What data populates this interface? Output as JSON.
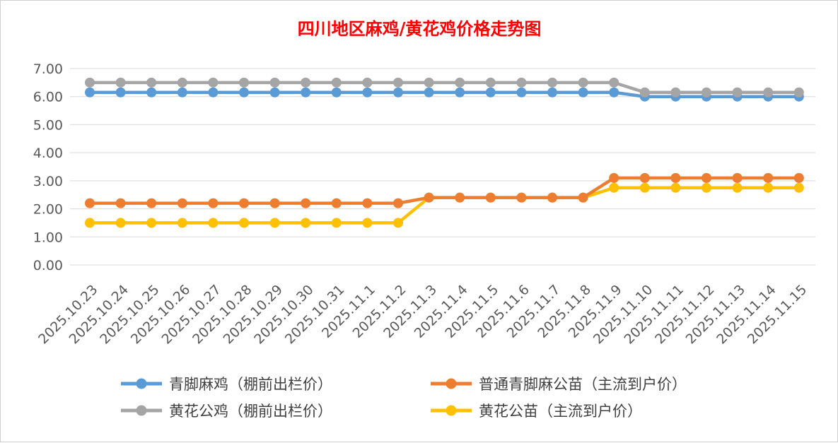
{
  "chart_data": {
    "type": "line",
    "title": "四川地区麻鸡/黄花鸡价格走势图",
    "xlabel": "",
    "ylabel": "",
    "ylim": [
      0,
      7
    ],
    "yticks": [
      "0.00",
      "1.00",
      "2.00",
      "3.00",
      "4.00",
      "5.00",
      "6.00",
      "7.00"
    ],
    "grid": "horizontal",
    "legend_position": "bottom",
    "categories": [
      "2025.10.23",
      "2025.10.24",
      "2025.10.25",
      "2025.10.26",
      "2025.10.27",
      "2025.10.28",
      "2025.10.29",
      "2025.10.30",
      "2025.10.31",
      "2025.11.1",
      "2025.11.2",
      "2025.11.3",
      "2025.11.4",
      "2025.11.5",
      "2025.11.6",
      "2025.11.7",
      "2025.11.8",
      "2025.11.9",
      "2025.11.10",
      "2025.11.11",
      "2025.11.12",
      "2025.11.13",
      "2025.11.14",
      "2025.11.15"
    ],
    "series": [
      {
        "name": "青脚麻鸡（棚前出栏价）",
        "color": "#5b9bd5",
        "values": [
          6.15,
          6.15,
          6.15,
          6.15,
          6.15,
          6.15,
          6.15,
          6.15,
          6.15,
          6.15,
          6.15,
          6.15,
          6.15,
          6.15,
          6.15,
          6.15,
          6.15,
          6.15,
          6.0,
          6.0,
          6.0,
          6.0,
          6.0,
          6.0
        ]
      },
      {
        "name": "普通青脚麻公苗（主流到户价）",
        "color": "#ed7d31",
        "values": [
          2.2,
          2.2,
          2.2,
          2.2,
          2.2,
          2.2,
          2.2,
          2.2,
          2.2,
          2.2,
          2.2,
          2.4,
          2.4,
          2.4,
          2.4,
          2.4,
          2.4,
          3.1,
          3.1,
          3.1,
          3.1,
          3.1,
          3.1,
          3.1
        ]
      },
      {
        "name": "黄花公鸡（棚前出栏价）",
        "color": "#a5a5a5",
        "values": [
          6.5,
          6.5,
          6.5,
          6.5,
          6.5,
          6.5,
          6.5,
          6.5,
          6.5,
          6.5,
          6.5,
          6.5,
          6.5,
          6.5,
          6.5,
          6.5,
          6.5,
          6.5,
          6.15,
          6.15,
          6.15,
          6.15,
          6.15,
          6.15
        ]
      },
      {
        "name": "黄花公苗（主流到户价）",
        "color": "#ffc000",
        "values": [
          1.5,
          1.5,
          1.5,
          1.5,
          1.5,
          1.5,
          1.5,
          1.5,
          1.5,
          1.5,
          1.5,
          2.4,
          2.4,
          2.4,
          2.4,
          2.4,
          2.4,
          2.75,
          2.75,
          2.75,
          2.75,
          2.75,
          2.75,
          2.75
        ]
      }
    ],
    "legend_order": [
      0,
      1,
      2,
      3
    ]
  }
}
